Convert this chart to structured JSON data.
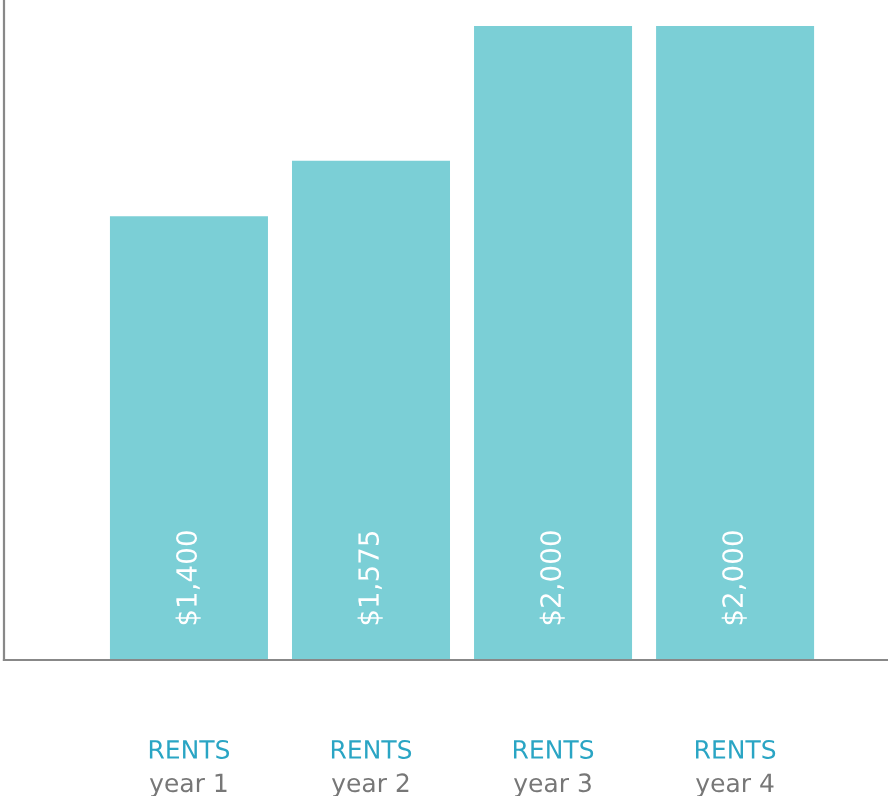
{
  "chart_data": {
    "type": "bar",
    "categories": [
      "RENTS\nyear 1",
      "RENTS\nyear 2",
      "RENTS\nyear 3",
      "RENTS\nyear 4"
    ],
    "values": [
      1400,
      1575,
      2000,
      2000
    ],
    "value_labels": [
      "$1,400",
      "$1,575",
      "$2,000",
      "$2,000"
    ],
    "color": "#7bcfd6"
  }
}
